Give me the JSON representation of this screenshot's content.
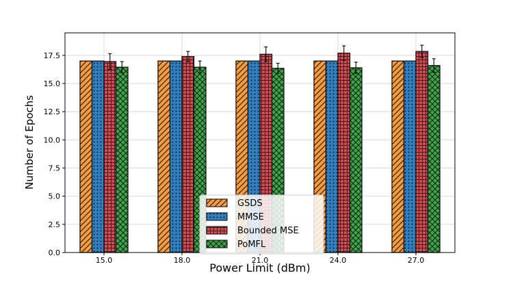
{
  "chart_data": {
    "type": "bar",
    "title": "",
    "xlabel": "Power Limit (dBm)",
    "ylabel": "Number of Epochs",
    "categories": [
      "15.0",
      "18.0",
      "21.0",
      "24.0",
      "27.0"
    ],
    "ylim": [
      0,
      19.5
    ],
    "yticks": [
      "0.0",
      "2.5",
      "5.0",
      "7.5",
      "10.0",
      "12.5",
      "15.0",
      "17.5"
    ],
    "grid": true,
    "legend_position": "bottom-center",
    "series": [
      {
        "name": "GSDS",
        "values": [
          17.0,
          17.0,
          17.0,
          17.0,
          17.0
        ],
        "errors": [
          0,
          0,
          0,
          0,
          0
        ],
        "color": "#ff9a3c",
        "pattern": "diagonal-hatch"
      },
      {
        "name": "MMSE",
        "values": [
          17.0,
          17.0,
          17.0,
          17.0,
          17.0
        ],
        "errors": [
          0,
          0,
          0,
          0,
          0
        ],
        "color": "#2f7fc1",
        "pattern": "dots"
      },
      {
        "name": "Bounded MSE",
        "values": [
          16.95,
          17.4,
          17.6,
          17.7,
          17.85
        ],
        "errors": [
          0.7,
          0.45,
          0.65,
          0.65,
          0.55
        ],
        "color": "#e0474c",
        "pattern": "grid"
      },
      {
        "name": "PoMFL",
        "values": [
          16.45,
          16.45,
          16.35,
          16.4,
          16.6
        ],
        "errors": [
          0.5,
          0.55,
          0.45,
          0.5,
          0.6
        ],
        "color": "#3aa745",
        "pattern": "crosshatch"
      }
    ]
  }
}
